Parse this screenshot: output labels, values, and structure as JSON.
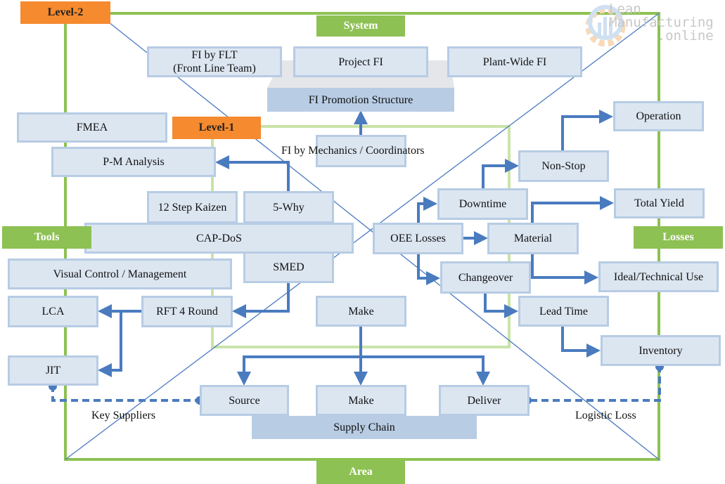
{
  "colors": {
    "frame": "#8dc153",
    "inner_frame": "#c9e3a8",
    "box_fill": "#dce6f1",
    "box_border": "#b7cce4",
    "arrow": "#4a7bbf",
    "label_green": "#8dc153",
    "label_orange": "#f58a2e"
  },
  "logo": {
    "line1": "Lean",
    "line2": "Manufacturing",
    "line3": ".online",
    "icon": "gear-chart-icon"
  },
  "labels": {
    "level2": "Level-2",
    "level1": "Level-1",
    "system": "System",
    "tools": "Tools",
    "losses": "Losses",
    "area": "Area"
  },
  "system": {
    "fi_flt_1": "FI by FLT",
    "fi_flt_2": "(Front Line Team)",
    "project_fi": "Project FI",
    "plant_wide_fi": "Plant-Wide FI",
    "promotion": "FI Promotion Structure",
    "mechanics": "FI by Mechanics / Coordinators"
  },
  "tools": {
    "fmea": "FMEA",
    "pm": "P-M Analysis",
    "kaizen": "12 Step Kaizen",
    "why": "5-Why",
    "capdos": "CAP-DoS",
    "visual": "Visual Control / Management",
    "smed": "SMED",
    "lca": "LCA",
    "rft": "RFT 4 Round",
    "jit": "JIT"
  },
  "area": {
    "make_top": "Make",
    "source": "Source",
    "make": "Make",
    "deliver": "Deliver",
    "supply_chain": "Supply Chain",
    "key_suppliers": "Key Suppliers",
    "logistic_loss": "Logistic Loss"
  },
  "losses": {
    "operation": "Operation",
    "nonstop": "Non-Stop",
    "downtime": "Downtime",
    "total_yield": "Total Yield",
    "oee": "OEE Losses",
    "material": "Material",
    "changeover": "Changeover",
    "ideal": "Ideal/Technical Use",
    "lead_time": "Lead Time",
    "inventory": "Inventory"
  }
}
